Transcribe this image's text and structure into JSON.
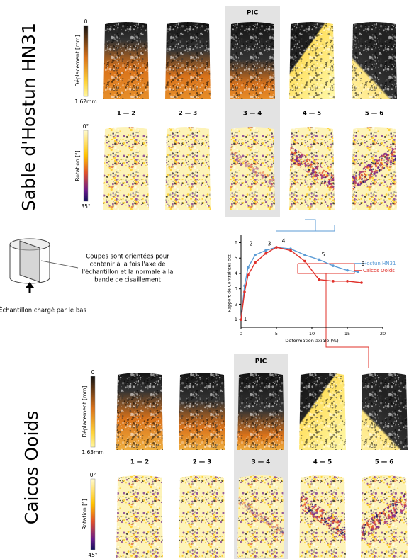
{
  "top": {
    "title": "Sable d'Hostun HN31",
    "displacement_bar": {
      "min": "0",
      "label": "Déplacement [mm]",
      "max": "1.62mm"
    },
    "rotation_bar": {
      "min": "0°",
      "label": "Rotation [°]",
      "max": "35°"
    },
    "peak": "PIC",
    "increments": [
      "1 — 2",
      "2 — 3",
      "3 — 4",
      "4 — 5",
      "5 — 6"
    ]
  },
  "bottom": {
    "title": "Caicos Ooids",
    "displacement_bar": {
      "min": "0",
      "label": "Déplacement [mm]",
      "max": "1.63mm"
    },
    "rotation_bar": {
      "min": "0°",
      "label": "Rotation [°]",
      "max": "45°"
    },
    "peak": "PIC",
    "increments": [
      "1 — 2",
      "2 — 3",
      "3 — 4",
      "4 — 5",
      "5 — 6"
    ]
  },
  "sketch": {
    "note": [
      "Coupes sont orientées pour",
      "contenir à la fois l'axe de",
      "l'échantillon et la normale à la",
      "bande de cisaillement"
    ],
    "caption": "Échantillon chargé par le bas"
  },
  "graph": {
    "type": "line",
    "ylabel": "Rapport de Contraintes oct.",
    "xlabel": "Déformation axiale (%)",
    "xlim": [
      0,
      20
    ],
    "xticks": [
      0,
      5,
      10,
      15,
      20
    ],
    "ylim": [
      0.5,
      6.3
    ],
    "yticks": [
      1,
      2,
      3,
      4,
      5,
      6
    ],
    "points": [
      "1",
      "2",
      "3",
      "4",
      "5",
      "6"
    ],
    "series": [
      {
        "name": "Hostun HN31",
        "color": "#5b9bd5",
        "x": [
          0,
          0.5,
          1,
          2,
          3.5,
          5,
          7,
          9,
          11,
          13,
          15,
          16.5
        ],
        "values": [
          1,
          3.2,
          4.4,
          5.2,
          5.5,
          5.7,
          5.6,
          5.2,
          4.9,
          4.5,
          4.2,
          4.1
        ]
      },
      {
        "name": "Caicos Ooids",
        "color": "#e0302a",
        "x": [
          0,
          0.5,
          1,
          2,
          3.5,
          5,
          7,
          9,
          11,
          13,
          15,
          17
        ],
        "values": [
          1,
          2.8,
          3.9,
          4.7,
          5.3,
          5.7,
          5.5,
          4.8,
          3.6,
          3.5,
          3.5,
          3.4
        ]
      }
    ]
  }
}
